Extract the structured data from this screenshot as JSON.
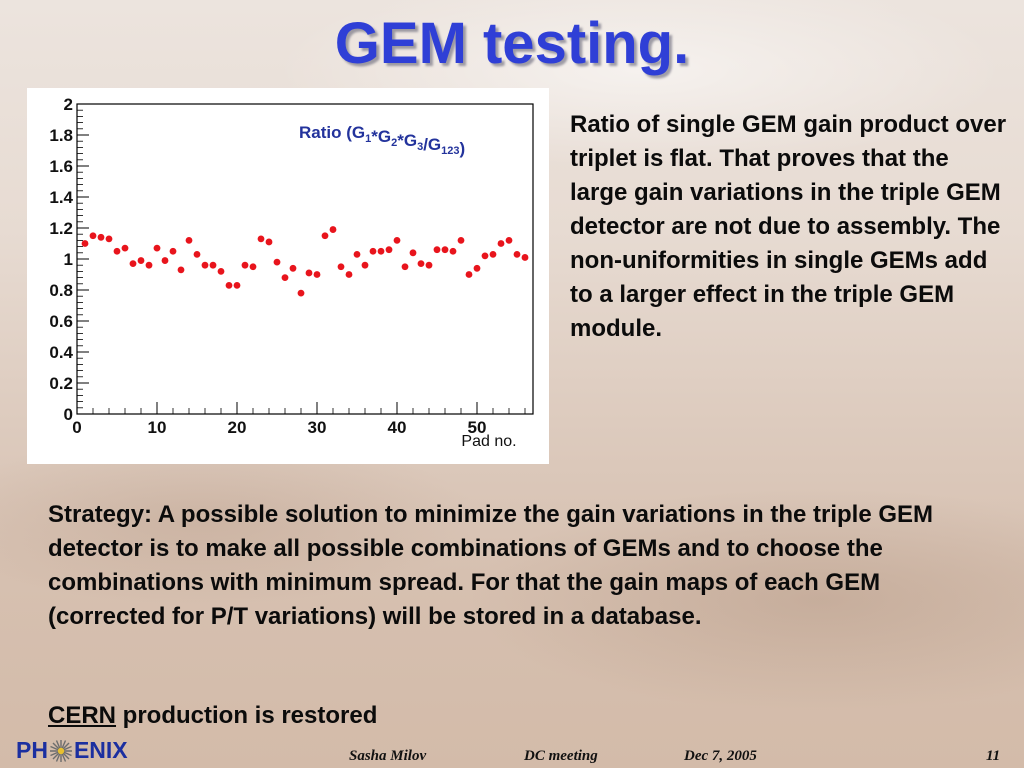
{
  "slide": {
    "title": "GEM testing.",
    "description": "Ratio of single GEM gain product over triplet is flat. That proves that the large gain variations in the triple GEM detector are not due to assembly. The non-uniformities in single GEMs add to a larger effect in the triple GEM module.",
    "strategy": "Strategy: A possible solution to minimize the gain variations in the triple GEM detector is to make all possible combinations of GEMs and to choose the combinations with minimum spread. For that the gain maps of each GEM (corrected for P/T variations) will be stored in a database.",
    "cern_word": "CERN",
    "cern_rest": " production is restored"
  },
  "footer": {
    "logo_left": "PH",
    "logo_right": "ENIX",
    "author": "Sasha Milov",
    "meeting": "DC meeting",
    "date": "Dec 7, 2005",
    "page": "11"
  },
  "colors": {
    "title": "#2f3fd6",
    "marker": "#e8141c",
    "legend_text": "#23339c"
  },
  "chart_data": {
    "type": "scatter",
    "title": "Ratio (G1*G2*G3/G123)",
    "xlabel": "Pad no.",
    "ylabel": "",
    "xlim": [
      0,
      57
    ],
    "ylim": [
      0,
      2
    ],
    "x_ticks": [
      0,
      10,
      20,
      30,
      40,
      50
    ],
    "y_ticks": [
      0,
      0.2,
      0.4,
      0.6,
      0.8,
      1,
      1.2,
      1.4,
      1.6,
      1.8,
      2
    ],
    "y_tick_labels": [
      "0",
      "0.2",
      "0.4",
      "0.6",
      "0.8",
      "1",
      "1.2",
      "1.4",
      "1.6",
      "1.8",
      "2"
    ],
    "legend": "top-right",
    "grid": false,
    "x": [
      1,
      2,
      3,
      4,
      5,
      6,
      7,
      8,
      9,
      10,
      11,
      12,
      13,
      14,
      15,
      16,
      17,
      18,
      19,
      20,
      21,
      22,
      23,
      24,
      25,
      26,
      27,
      28,
      29,
      30,
      31,
      32,
      33,
      34,
      35,
      36,
      37,
      38,
      39,
      40,
      41,
      42,
      43,
      44,
      45,
      46,
      47,
      48,
      49,
      50,
      51,
      52,
      53,
      54,
      55,
      56
    ],
    "y": [
      1.1,
      1.15,
      1.14,
      1.13,
      1.05,
      1.07,
      0.97,
      0.99,
      0.96,
      1.07,
      0.99,
      1.05,
      0.93,
      1.12,
      1.03,
      0.96,
      0.96,
      0.92,
      0.83,
      0.83,
      0.96,
      0.95,
      1.13,
      1.11,
      0.98,
      0.88,
      0.94,
      0.78,
      0.91,
      0.9,
      1.15,
      1.19,
      0.95,
      0.9,
      1.03,
      0.96,
      1.05,
      1.05,
      1.06,
      1.12,
      0.95,
      1.04,
      0.97,
      0.96,
      1.06,
      1.06,
      1.05,
      1.12,
      0.9,
      0.94,
      1.02,
      1.03,
      1.1,
      1.12,
      1.03,
      1.01
    ]
  }
}
